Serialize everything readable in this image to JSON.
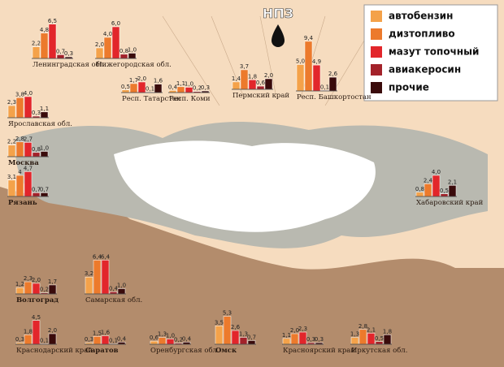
{
  "title": "НПЗ",
  "legend": [
    {
      "name": "автобензин",
      "color": "#f4a24a"
    },
    {
      "name": "дизтопливо",
      "color": "#ec7a2c"
    },
    {
      "name": "мазут топочный",
      "color": "#e2262b"
    },
    {
      "name": "авиакеросин",
      "color": "#a3222a"
    },
    {
      "name": "прочие",
      "color": "#3a0b0b"
    }
  ],
  "regions": [
    {
      "name": "Ленинградская обл.",
      "values": [
        2.2,
        4.8,
        6.5,
        0.7,
        0.3
      ],
      "value_labels": [
        "2,2",
        "4,8",
        "6,5",
        "0,7",
        "0,3"
      ]
    },
    {
      "name": "Нижегородская обл.",
      "values": [
        2.0,
        4.0,
        6.0,
        0.8,
        1.0
      ],
      "value_labels": [
        "2,0",
        "4,0",
        "6,0",
        "0,8",
        "1,0"
      ]
    },
    {
      "name": "Респ. Татарстан",
      "values": [
        0.5,
        1.7,
        2.0,
        0.1,
        1.6
      ],
      "value_labels": [
        "0,5",
        "1,7",
        "2,0",
        "0,1",
        "1,6"
      ]
    },
    {
      "name": "Респ. Коми",
      "values": [
        0.4,
        1.1,
        1.0,
        0.2,
        0.3
      ],
      "value_labels": [
        "0,4",
        "1,1",
        "1,0",
        "0,2",
        "0,3"
      ]
    },
    {
      "name": "Пермский край",
      "values": [
        1.4,
        3.7,
        1.8,
        0.6,
        2.0
      ],
      "value_labels": [
        "1,4",
        "3,7",
        "1,8",
        "0,6",
        "2,0"
      ]
    },
    {
      "name": "Респ. Башкортостан",
      "values": [
        5.0,
        9.4,
        4.9,
        0.1,
        2.6
      ],
      "value_labels": [
        "5,0",
        "9,4",
        "4,9",
        "0,1",
        "2,6"
      ]
    },
    {
      "name": "Ярославская обл.",
      "values": [
        2.3,
        3.8,
        4.0,
        0.3,
        1.1
      ],
      "value_labels": [
        "2,3",
        "3,8",
        "4,0",
        "0,3",
        "1,1"
      ]
    },
    {
      "name": "Москва",
      "values": [
        2.2,
        2.8,
        2.7,
        0.8,
        1.0
      ],
      "value_labels": [
        "2,2",
        "2,8",
        "2,7",
        "0,8",
        "1,0"
      ]
    },
    {
      "name": "Рязань",
      "values": [
        3.1,
        4.0,
        4.7,
        0.7,
        0.7
      ],
      "value_labels": [
        "3,1",
        "4",
        "4,7",
        "0,7",
        "0,7"
      ]
    },
    {
      "name": "Хабаровский край",
      "values": [
        0.8,
        2.4,
        4.0,
        0.5,
        2.1
      ],
      "value_labels": [
        "0,8",
        "2,4",
        "4,0",
        "0,5",
        "2,1"
      ]
    },
    {
      "name": "Волгоград",
      "values": [
        1.2,
        2.3,
        2.0,
        0.2,
        1.7
      ],
      "value_labels": [
        "1,2",
        "2,3",
        "2,0",
        "0,2",
        "1,7"
      ]
    },
    {
      "name": "Самарская обл.",
      "values": [
        3.2,
        6.4,
        6.4,
        0.4,
        1.0
      ],
      "value_labels": [
        "3,2",
        "6,4",
        "6,4",
        "0,4",
        "1,0"
      ]
    },
    {
      "name": "Краснодарский край",
      "values": [
        0.3,
        1.8,
        4.5,
        0.1,
        2.0
      ],
      "value_labels": [
        "0,3",
        "1,8",
        "4,5",
        "0,1",
        "2,0"
      ]
    },
    {
      "name": "Саратов",
      "values": [
        0.3,
        1.5,
        1.6,
        0.1,
        0.4
      ],
      "value_labels": [
        "0,3",
        "1,5",
        "1,6",
        "0,1",
        "0,4"
      ]
    },
    {
      "name": "Оренбургская обл.",
      "values": [
        0.6,
        1.3,
        1.0,
        0.2,
        0.4
      ],
      "value_labels": [
        "0,6",
        "1,3",
        "1,0",
        "0,2",
        "0,4"
      ]
    },
    {
      "name": "Омск",
      "values": [
        3.5,
        5.3,
        2.6,
        1.3,
        0.7
      ],
      "value_labels": [
        "3,5",
        "5,3",
        "2,6",
        "1,3",
        "0,7"
      ]
    },
    {
      "name": "Красноярский край",
      "values": [
        1.1,
        2.0,
        2.3,
        0.3,
        0.3
      ],
      "value_labels": [
        "1,1",
        "2,0",
        "2,3",
        "0,3",
        "0,3"
      ]
    },
    {
      "name": "Иркутская обл.",
      "values": [
        1.3,
        2.8,
        2.1,
        0.5,
        1.8
      ],
      "value_labels": [
        "1,3",
        "2,8",
        "2,1",
        "0,5",
        "1,8"
      ]
    }
  ]
}
